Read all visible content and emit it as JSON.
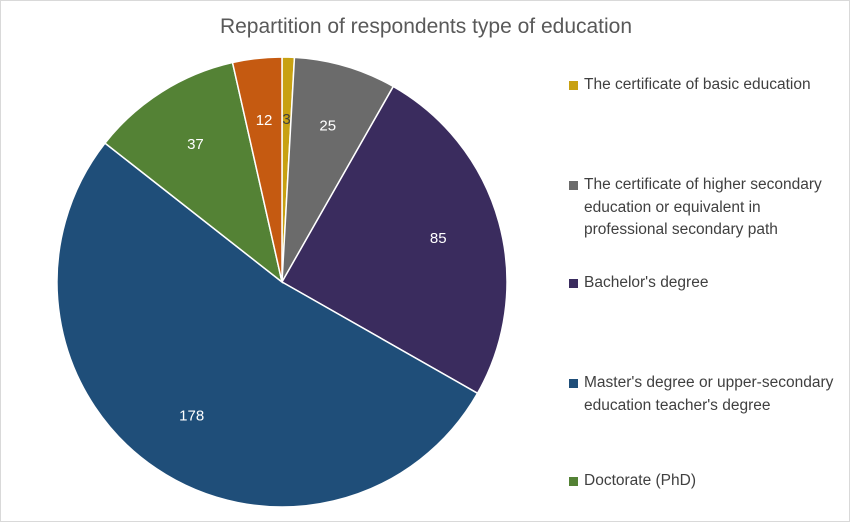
{
  "chart_data": {
    "type": "pie",
    "title": "Repartition of respondents  type of education",
    "categories": [
      "The certificate of basic education",
      "The certificate of higher secondary education or equivalent in professional secondary path",
      "Bachelor's degree",
      "Master's degree or upper-secondary education teacher's degree",
      "Doctorate (PhD)",
      ""
    ],
    "values": [
      3,
      25,
      85,
      178,
      37,
      12
    ],
    "colors": [
      "#c8a112",
      "#6b6b6b",
      "#3a2c5e",
      "#1f4e79",
      "#548235",
      "#c55a11"
    ],
    "legend_position": "right"
  }
}
